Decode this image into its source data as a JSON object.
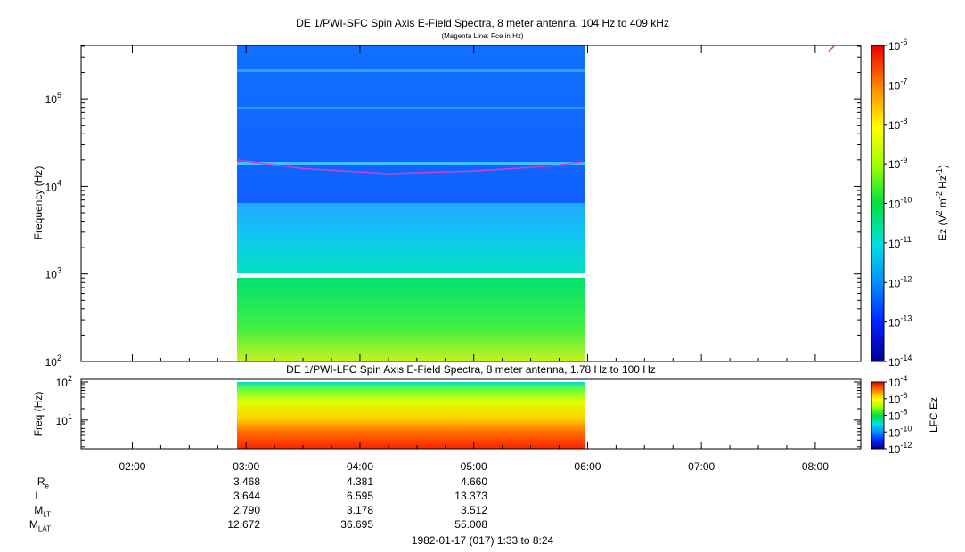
{
  "chart_data": [
    {
      "type": "heatmap",
      "title": "DE 1/PWI-SFC  Spin Axis E-Field Spectra, 8 meter antenna, 104 Hz to 409 kHz",
      "subtitle": "(Magenta Line: Fce in Hz)",
      "ylabel": "Frequency (Hz)",
      "yscale": "log",
      "ylim": [
        100,
        409000
      ],
      "y_ticks": [
        "10^2",
        "10^3",
        "10^4",
        "10^5"
      ],
      "x_ticks": [
        "02:00",
        "03:00",
        "04:00",
        "05:00",
        "06:00",
        "07:00",
        "08:00"
      ],
      "data_time_range": [
        "02:55",
        "05:57"
      ],
      "colorbar": {
        "label": "Ez (V^2 m^-2 Hz^-1)",
        "ticks": [
          "10^-6",
          "10^-7",
          "10^-8",
          "10^-9",
          "10^-10",
          "10^-11",
          "10^-12",
          "10^-13",
          "10^-14"
        ],
        "range": [
          1e-14,
          1e-06
        ],
        "scale": "log"
      },
      "fce_line": {
        "color": "#d040d0",
        "points": [
          {
            "t": "02:55",
            "f": 20000
          },
          {
            "t": "03:30",
            "f": 16000
          },
          {
            "t": "04:15",
            "f": 14000
          },
          {
            "t": "05:00",
            "f": 15000
          },
          {
            "t": "05:40",
            "f": 17000
          },
          {
            "t": "05:57",
            "f": 19000
          },
          {
            "t": "08:07",
            "f": 350000
          },
          {
            "t": "08:10",
            "f": 400000
          }
        ]
      }
    },
    {
      "type": "heatmap",
      "title": "DE 1/PWI-LFC  Spin Axis E-Field Spectra, 8 meter antenna, 1.78 Hz to 100 Hz",
      "ylabel": "Freq (Hz)",
      "yscale": "log",
      "ylim": [
        1.78,
        100
      ],
      "y_ticks": [
        "10^1",
        "10^2"
      ],
      "data_time_range": [
        "02:55",
        "05:57"
      ],
      "colorbar": {
        "label": "LFC Ez",
        "ticks": [
          "10^-4",
          "10^-6",
          "10^-8",
          "10^-10",
          "10^-12"
        ],
        "range": [
          1e-12,
          0.0001
        ],
        "scale": "log"
      }
    }
  ],
  "ephemeris": {
    "labels": [
      "R",
      "L",
      "M",
      "M"
    ],
    "label_subscripts": [
      "e",
      "",
      "LT",
      "LAT"
    ],
    "times": [
      "03:00",
      "04:00",
      "05:00"
    ],
    "rows": [
      [
        "3.468",
        "4.381",
        "4.660"
      ],
      [
        "3.644",
        "6.595",
        "13.373"
      ],
      [
        "2.790",
        "3.178",
        "3.512"
      ],
      [
        "12.672",
        "36.695",
        "55.008"
      ]
    ]
  },
  "footer": "1982-01-17 (017) 1:33 to 8:24"
}
